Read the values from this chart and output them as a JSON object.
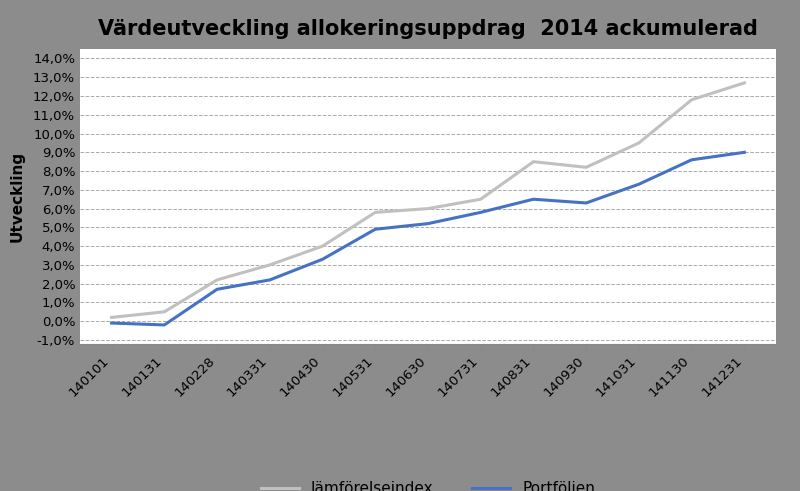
{
  "title": "Värdeutveckling allokeringsuppdrag  2014 ackumulerad",
  "ylabel": "Utveckling",
  "background_color": "#8c8c8c",
  "plot_bg_color": "#ffffff",
  "x_labels": [
    "140101",
    "140131",
    "140228",
    "140331",
    "140430",
    "140531",
    "140630",
    "140731",
    "140831",
    "140930",
    "141031",
    "141130",
    "141231"
  ],
  "jamforelseindex": [
    0.002,
    0.005,
    0.022,
    0.03,
    0.04,
    0.058,
    0.06,
    0.065,
    0.085,
    0.082,
    0.095,
    0.118,
    0.127
  ],
  "portfoljen": [
    -0.001,
    -0.002,
    0.017,
    0.022,
    0.033,
    0.049,
    0.052,
    0.058,
    0.065,
    0.063,
    0.073,
    0.086,
    0.09
  ],
  "jamforelseindex_color": "#c0c0c0",
  "portfoljen_color": "#4472c4",
  "line_width": 2.2,
  "ylim_min": -0.012,
  "ylim_max": 0.145,
  "yticks": [
    -0.01,
    0.0,
    0.01,
    0.02,
    0.03,
    0.04,
    0.05,
    0.06,
    0.07,
    0.08,
    0.09,
    0.1,
    0.11,
    0.12,
    0.13,
    0.14
  ],
  "ytick_labels": [
    "-1,0%",
    "0,0%",
    "1,0%",
    "2,0%",
    "3,0%",
    "4,0%",
    "5,0%",
    "6,0%",
    "7,0%",
    "8,0%",
    "9,0%",
    "10,0%",
    "11,0%",
    "12,0%",
    "13,0%",
    "14,0%"
  ],
  "title_fontsize": 15,
  "axis_label_fontsize": 11,
  "tick_fontsize": 9.5,
  "legend_fontsize": 11
}
